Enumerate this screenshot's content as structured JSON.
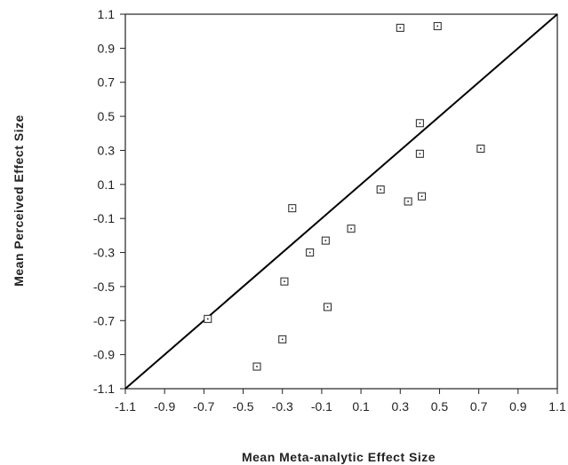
{
  "chart_data": {
    "type": "scatter",
    "title": "",
    "xlabel": "Mean  Meta-analytic  Effect  Size",
    "ylabel": "Mean Perceived Effect Size",
    "xlim": [
      -1.1,
      1.1
    ],
    "ylim": [
      -1.1,
      1.1
    ],
    "xticks": [
      "-1.1",
      "-0.9",
      "-0.7",
      "-0.5",
      "-0.3",
      "-0.1",
      "0.1",
      "0.3",
      "0.5",
      "0.7",
      "0.9",
      "1.1"
    ],
    "yticks": [
      "1.1",
      "0.9",
      "0.7",
      "0.5",
      "0.3",
      "0.1",
      "-0.1",
      "-0.3",
      "-0.5",
      "-0.7",
      "-0.9",
      "-1.1"
    ],
    "grid": false,
    "reference_line": {
      "from": [
        -1.1,
        -1.1
      ],
      "to": [
        1.1,
        1.1
      ]
    },
    "points": [
      {
        "x": 0.3,
        "y": 1.02
      },
      {
        "x": 0.49,
        "y": 1.03
      },
      {
        "x": 0.4,
        "y": 0.46
      },
      {
        "x": 0.4,
        "y": 0.28
      },
      {
        "x": 0.71,
        "y": 0.31
      },
      {
        "x": 0.2,
        "y": 0.07
      },
      {
        "x": 0.34,
        "y": 0.0
      },
      {
        "x": 0.41,
        "y": 0.03
      },
      {
        "x": -0.25,
        "y": -0.04
      },
      {
        "x": 0.05,
        "y": -0.16
      },
      {
        "x": -0.08,
        "y": -0.23
      },
      {
        "x": -0.16,
        "y": -0.3
      },
      {
        "x": -0.29,
        "y": -0.47
      },
      {
        "x": -0.07,
        "y": -0.62
      },
      {
        "x": -0.68,
        "y": -0.69
      },
      {
        "x": -0.3,
        "y": -0.81
      },
      {
        "x": -0.43,
        "y": -0.97
      }
    ]
  }
}
